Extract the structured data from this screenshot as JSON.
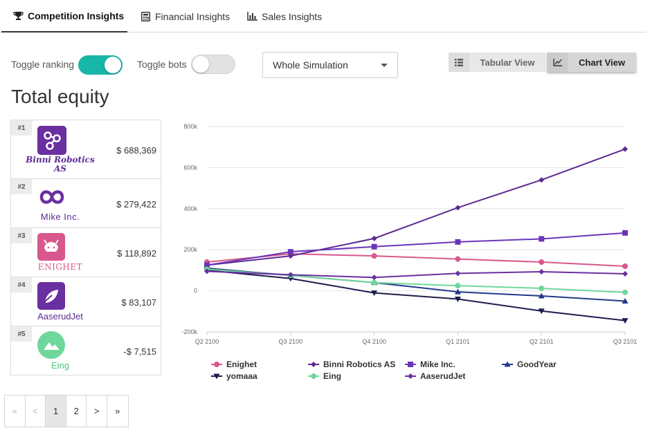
{
  "tabs": [
    {
      "label": "Competition Insights",
      "icon": "trophy-icon",
      "active": true
    },
    {
      "label": "Financial Insights",
      "icon": "calculator-icon",
      "active": false
    },
    {
      "label": "Sales Insights",
      "icon": "bar-chart-icon",
      "active": false
    }
  ],
  "controls": {
    "toggle_ranking_label": "Toggle ranking",
    "toggle_ranking_on": true,
    "toggle_bots_label": "Toggle bots",
    "toggle_bots_on": false,
    "period_select": "Whole Simulation",
    "tabular_view_label": "Tabular View",
    "chart_view_label": "Chart View"
  },
  "page_title": "Total equity",
  "ranking": [
    {
      "rank": "#1",
      "name_lines": [
        "Binni Robotics",
        "AS"
      ],
      "equity": "$ 688,369",
      "logo_color": "#6a2fa0"
    },
    {
      "rank": "#2",
      "name_lines": [
        "Mike Inc."
      ],
      "equity": "$ 279,422",
      "logo_color": "#6a2fa0"
    },
    {
      "rank": "#3",
      "name_lines": [
        "ENIGHET"
      ],
      "equity": "$ 118,892",
      "logo_color": "#d9578c"
    },
    {
      "rank": "#4",
      "name_lines": [
        "AaserudJet"
      ],
      "equity": "$ 83,107",
      "logo_color": "#6a2fa0"
    },
    {
      "rank": "#5",
      "name_lines": [
        "Eing"
      ],
      "equity": "-$ 7,515",
      "logo_color": "#6fd79b"
    }
  ],
  "pagination": {
    "items": [
      "«",
      "<",
      "1",
      "2",
      ">",
      "»"
    ],
    "current": "1"
  },
  "chart_data": {
    "type": "line",
    "title": "Total equity",
    "categories": [
      "Q2 2100",
      "Q3 2100",
      "Q4 2100",
      "Q1 2101",
      "Q2 2101",
      "Q3 2101"
    ],
    "ylim": [
      -200000,
      800000
    ],
    "yticks": [
      -200000,
      0,
      200000,
      400000,
      600000,
      800000
    ],
    "ytick_labels": [
      "-200k",
      "0",
      "200k",
      "400k",
      "600k",
      "800k"
    ],
    "grid": true,
    "legend_position": "bottom",
    "series": [
      {
        "name": "Enighet",
        "color": "#d9578c",
        "marker": "circle",
        "values": [
          140000,
          180000,
          170000,
          155000,
          140000,
          120000
        ]
      },
      {
        "name": "Binni Robotics AS",
        "color": "#5b2a91",
        "marker": "diamond",
        "values": [
          125000,
          170000,
          255000,
          405000,
          540000,
          690000
        ]
      },
      {
        "name": "Mike Inc.",
        "color": "#6a35b8",
        "marker": "square",
        "values": [
          125000,
          190000,
          215000,
          238000,
          253000,
          282000
        ]
      },
      {
        "name": "GoodYear",
        "color": "#23388a",
        "marker": "triangle",
        "values": [
          110000,
          75000,
          40000,
          -5000,
          -25000,
          -50000
        ]
      },
      {
        "name": "yomaaa",
        "color": "#1c1c4e",
        "marker": "triangle-down",
        "values": [
          100000,
          60000,
          -10000,
          -40000,
          -98000,
          -145000
        ]
      },
      {
        "name": "Eing",
        "color": "#6fd79b",
        "marker": "circle",
        "values": [
          105000,
          75000,
          40000,
          25000,
          12000,
          -7500
        ]
      },
      {
        "name": "AaserudJet",
        "color": "#6a2fa0",
        "marker": "diamond",
        "values": [
          95000,
          78000,
          65000,
          85000,
          93000,
          83000
        ]
      }
    ]
  }
}
